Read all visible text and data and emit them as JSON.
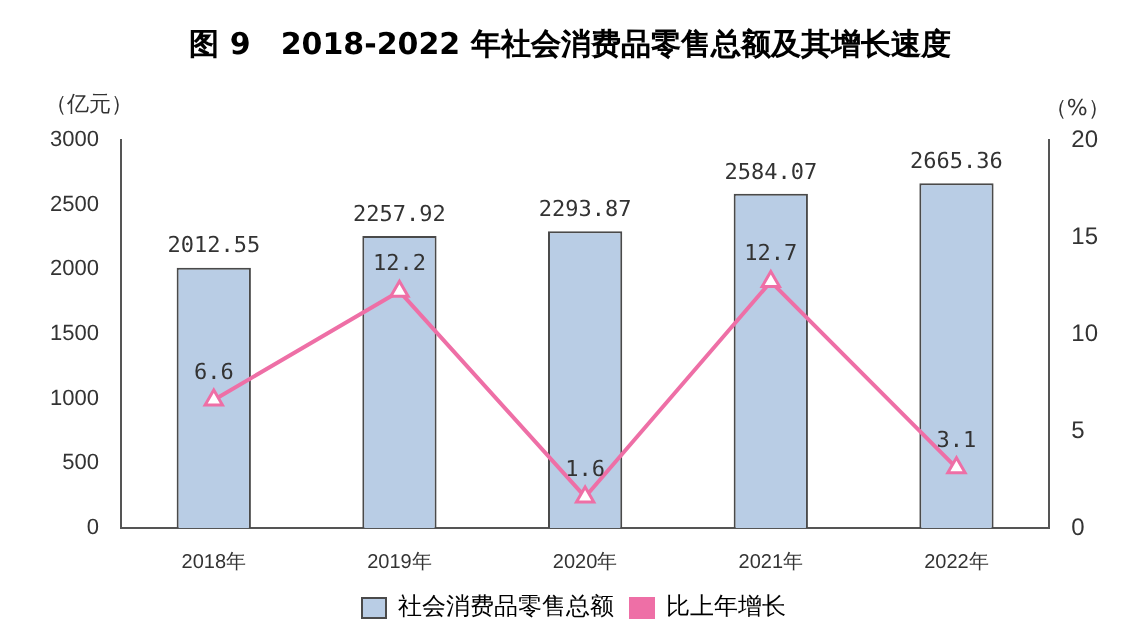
{
  "chart_data": {
    "type": "bar",
    "title": "图 9　2018-2022 年社会消费品零售总额及其增长速度",
    "ylabel": "（亿元）",
    "y2label": "（%）",
    "categories": [
      "2018年",
      "2019年",
      "2020年",
      "2021年",
      "2022年"
    ],
    "series": [
      {
        "name": "社会消费品零售总额",
        "color": "#b9cde5",
        "values": [
          2012.55,
          2257.92,
          2293.87,
          2584.07,
          2665.36
        ]
      },
      {
        "name": "比上年增长",
        "type": "line",
        "axis": "y2",
        "color": "#ee6fa6",
        "marker": "triangle",
        "values": [
          6.6,
          12.2,
          1.6,
          12.7,
          3.1
        ]
      }
    ],
    "ylim": [
      0,
      3000
    ],
    "yticks": [
      0,
      500,
      1000,
      1500,
      2000,
      2500,
      3000
    ],
    "y2lim": [
      0,
      20
    ],
    "y2ticks": [
      0,
      5,
      10,
      15,
      20
    ],
    "grid": false,
    "legend": "bottom",
    "data_labels": true
  }
}
